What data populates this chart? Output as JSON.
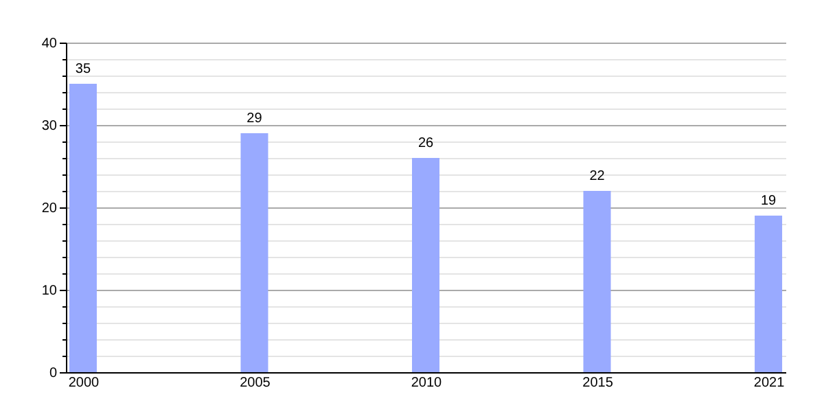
{
  "chart_data": {
    "type": "bar",
    "categories": [
      "2000",
      "2005",
      "2010",
      "2015",
      "2021"
    ],
    "values": [
      35,
      29,
      26,
      22,
      19
    ],
    "color": "#99aaff",
    "ylim": [
      0,
      40
    ],
    "yticks": [
      0,
      {
        "value": 2,
        "label": null
      },
      {
        "value": 4,
        "label": null
      },
      {
        "value": 6,
        "label": null
      },
      {
        "value": 8,
        "label": null
      },
      10,
      {
        "value": 12,
        "label": null
      },
      {
        "value": 14,
        "label": null
      },
      {
        "value": 16,
        "label": null
      },
      {
        "value": 18,
        "label": null
      },
      20,
      {
        "value": 22,
        "label": null
      },
      {
        "value": 24,
        "label": null
      },
      {
        "value": 26,
        "label": null
      },
      {
        "value": 28,
        "label": null
      },
      30,
      {
        "value": 32,
        "label": null
      },
      {
        "value": 34,
        "label": null
      },
      {
        "value": 36,
        "label": null
      },
      {
        "value": 38,
        "label": null
      },
      40
    ],
    "grid": true,
    "data_labels": true
  }
}
